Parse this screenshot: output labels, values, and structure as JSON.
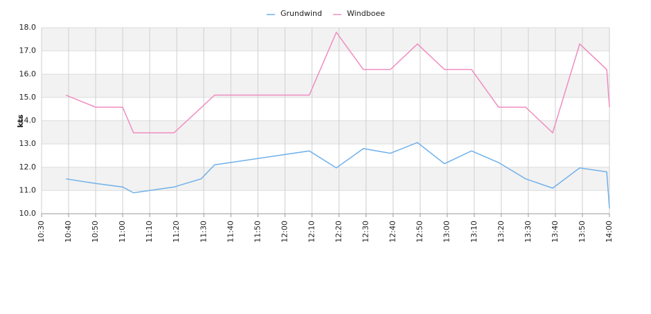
{
  "chart_data": {
    "type": "line",
    "y_label": "kts",
    "x": [
      "10:39",
      "10:50",
      "11:00",
      "11:04",
      "11:19",
      "11:29",
      "11:34",
      "12:09",
      "12:19",
      "12:29",
      "12:39",
      "12:49",
      "12:59",
      "13:09",
      "13:19",
      "13:29",
      "13:39",
      "13:49",
      "13:59",
      "14:00"
    ],
    "series": [
      {
        "name": "Grundwind",
        "color": "#6fb0ea",
        "values": [
          11.5,
          11.3,
          11.15,
          10.9,
          11.15,
          11.5,
          12.1,
          12.7,
          11.97,
          12.8,
          12.6,
          13.06,
          12.15,
          12.7,
          12.2,
          11.5,
          11.1,
          11.97,
          11.8,
          10.23
        ]
      },
      {
        "name": "Windboee",
        "color": "#f08cbf",
        "values": [
          15.1,
          14.58,
          14.58,
          13.48,
          13.48,
          14.56,
          15.1,
          15.1,
          17.8,
          16.2,
          16.2,
          17.3,
          16.2,
          16.2,
          14.58,
          14.58,
          13.48,
          17.3,
          16.2,
          14.58
        ]
      }
    ],
    "xlim": [
      "10:30",
      "14:00"
    ],
    "xticks": [
      "10:30",
      "10:40",
      "10:50",
      "11:00",
      "11:10",
      "11:20",
      "11:30",
      "11:40",
      "11:50",
      "12:00",
      "12:10",
      "12:20",
      "12:30",
      "12:40",
      "12:50",
      "13:00",
      "13:10",
      "13:20",
      "13:30",
      "13:40",
      "13:50",
      "14:00"
    ],
    "ylim": [
      10,
      18
    ],
    "yticks": [
      {
        "value": 10,
        "label": "10.0"
      },
      {
        "value": 11,
        "label": "11.0"
      },
      {
        "value": 12,
        "label": "12.0"
      },
      {
        "value": 13,
        "label": "13.0"
      },
      {
        "value": 14,
        "label": "14.0"
      },
      {
        "value": 15,
        "label": "15.0"
      },
      {
        "value": 16,
        "label": "16.0"
      },
      {
        "value": 17,
        "label": "17.0"
      },
      {
        "value": 18,
        "label": "18.0"
      }
    ],
    "grid": true,
    "legend": "top"
  }
}
